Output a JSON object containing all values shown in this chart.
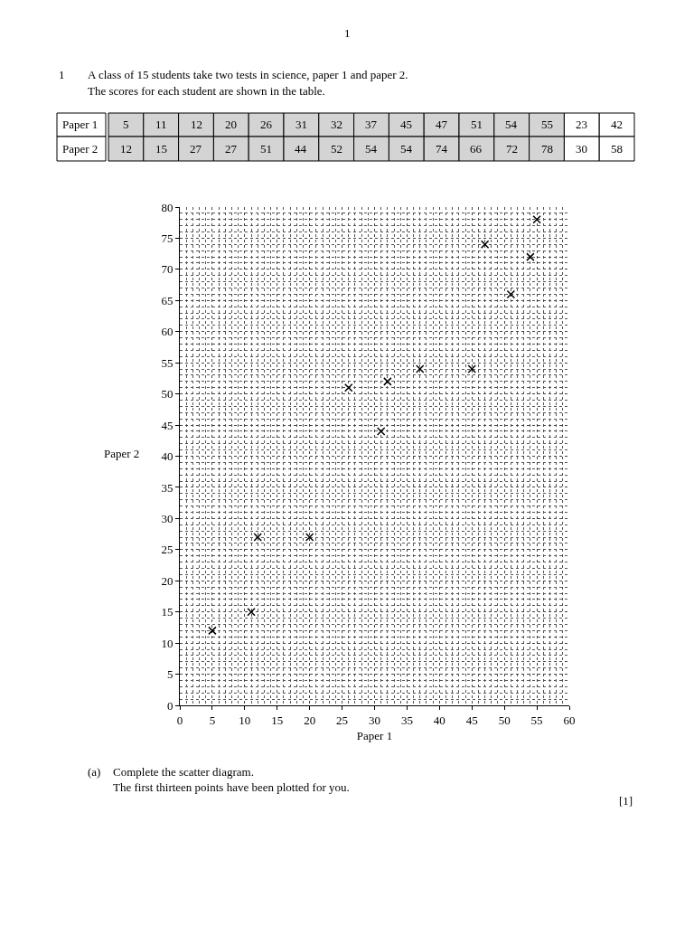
{
  "chart_data": {
    "type": "scatter",
    "title": "A class of 15 students take two tests in science, paper 1 and paper 2.",
    "subtitle": "The scores for each student are shown in the table.",
    "xlabel": "Paper 1",
    "ylabel": "Paper 2",
    "x": [
      5,
      11,
      12,
      20,
      26,
      31,
      32,
      37,
      45,
      47,
      51,
      54,
      55
    ],
    "series": [
      {
        "color": "#000000",
        "values": [
          12,
          15,
          27,
          27,
          51,
          44,
          52,
          54,
          54,
          74,
          66,
          72,
          78
        ]
      }
    ],
    "xlim": [
      0,
      60
    ],
    "ylim": [
      0,
      80
    ],
    "xticks": [
      0,
      5,
      10,
      15,
      20,
      25,
      30,
      35,
      40,
      45,
      50,
      55,
      60
    ],
    "yticks": [
      0,
      5,
      10,
      15,
      20,
      25,
      30,
      35,
      40,
      45,
      50,
      55,
      60,
      65,
      70,
      75,
      80
    ],
    "grid": true,
    "marker": "cross",
    "annotations": [
      "1",
      "1",
      "Paper 1",
      "5",
      "11",
      "12",
      "20",
      "26",
      "31",
      "32",
      "37",
      "45",
      "47",
      "51",
      "54",
      "55",
      "23",
      "42",
      "Paper 2",
      "12",
      "15",
      "27",
      "27",
      "51",
      "44",
      "52",
      "54",
      "54",
      "74",
      "66",
      "72",
      "78",
      "30",
      "58",
      "(a)",
      "Complete the scatter diagram.",
      "The first thirteen points have been plotted for you.",
      "[1]"
    ]
  }
}
